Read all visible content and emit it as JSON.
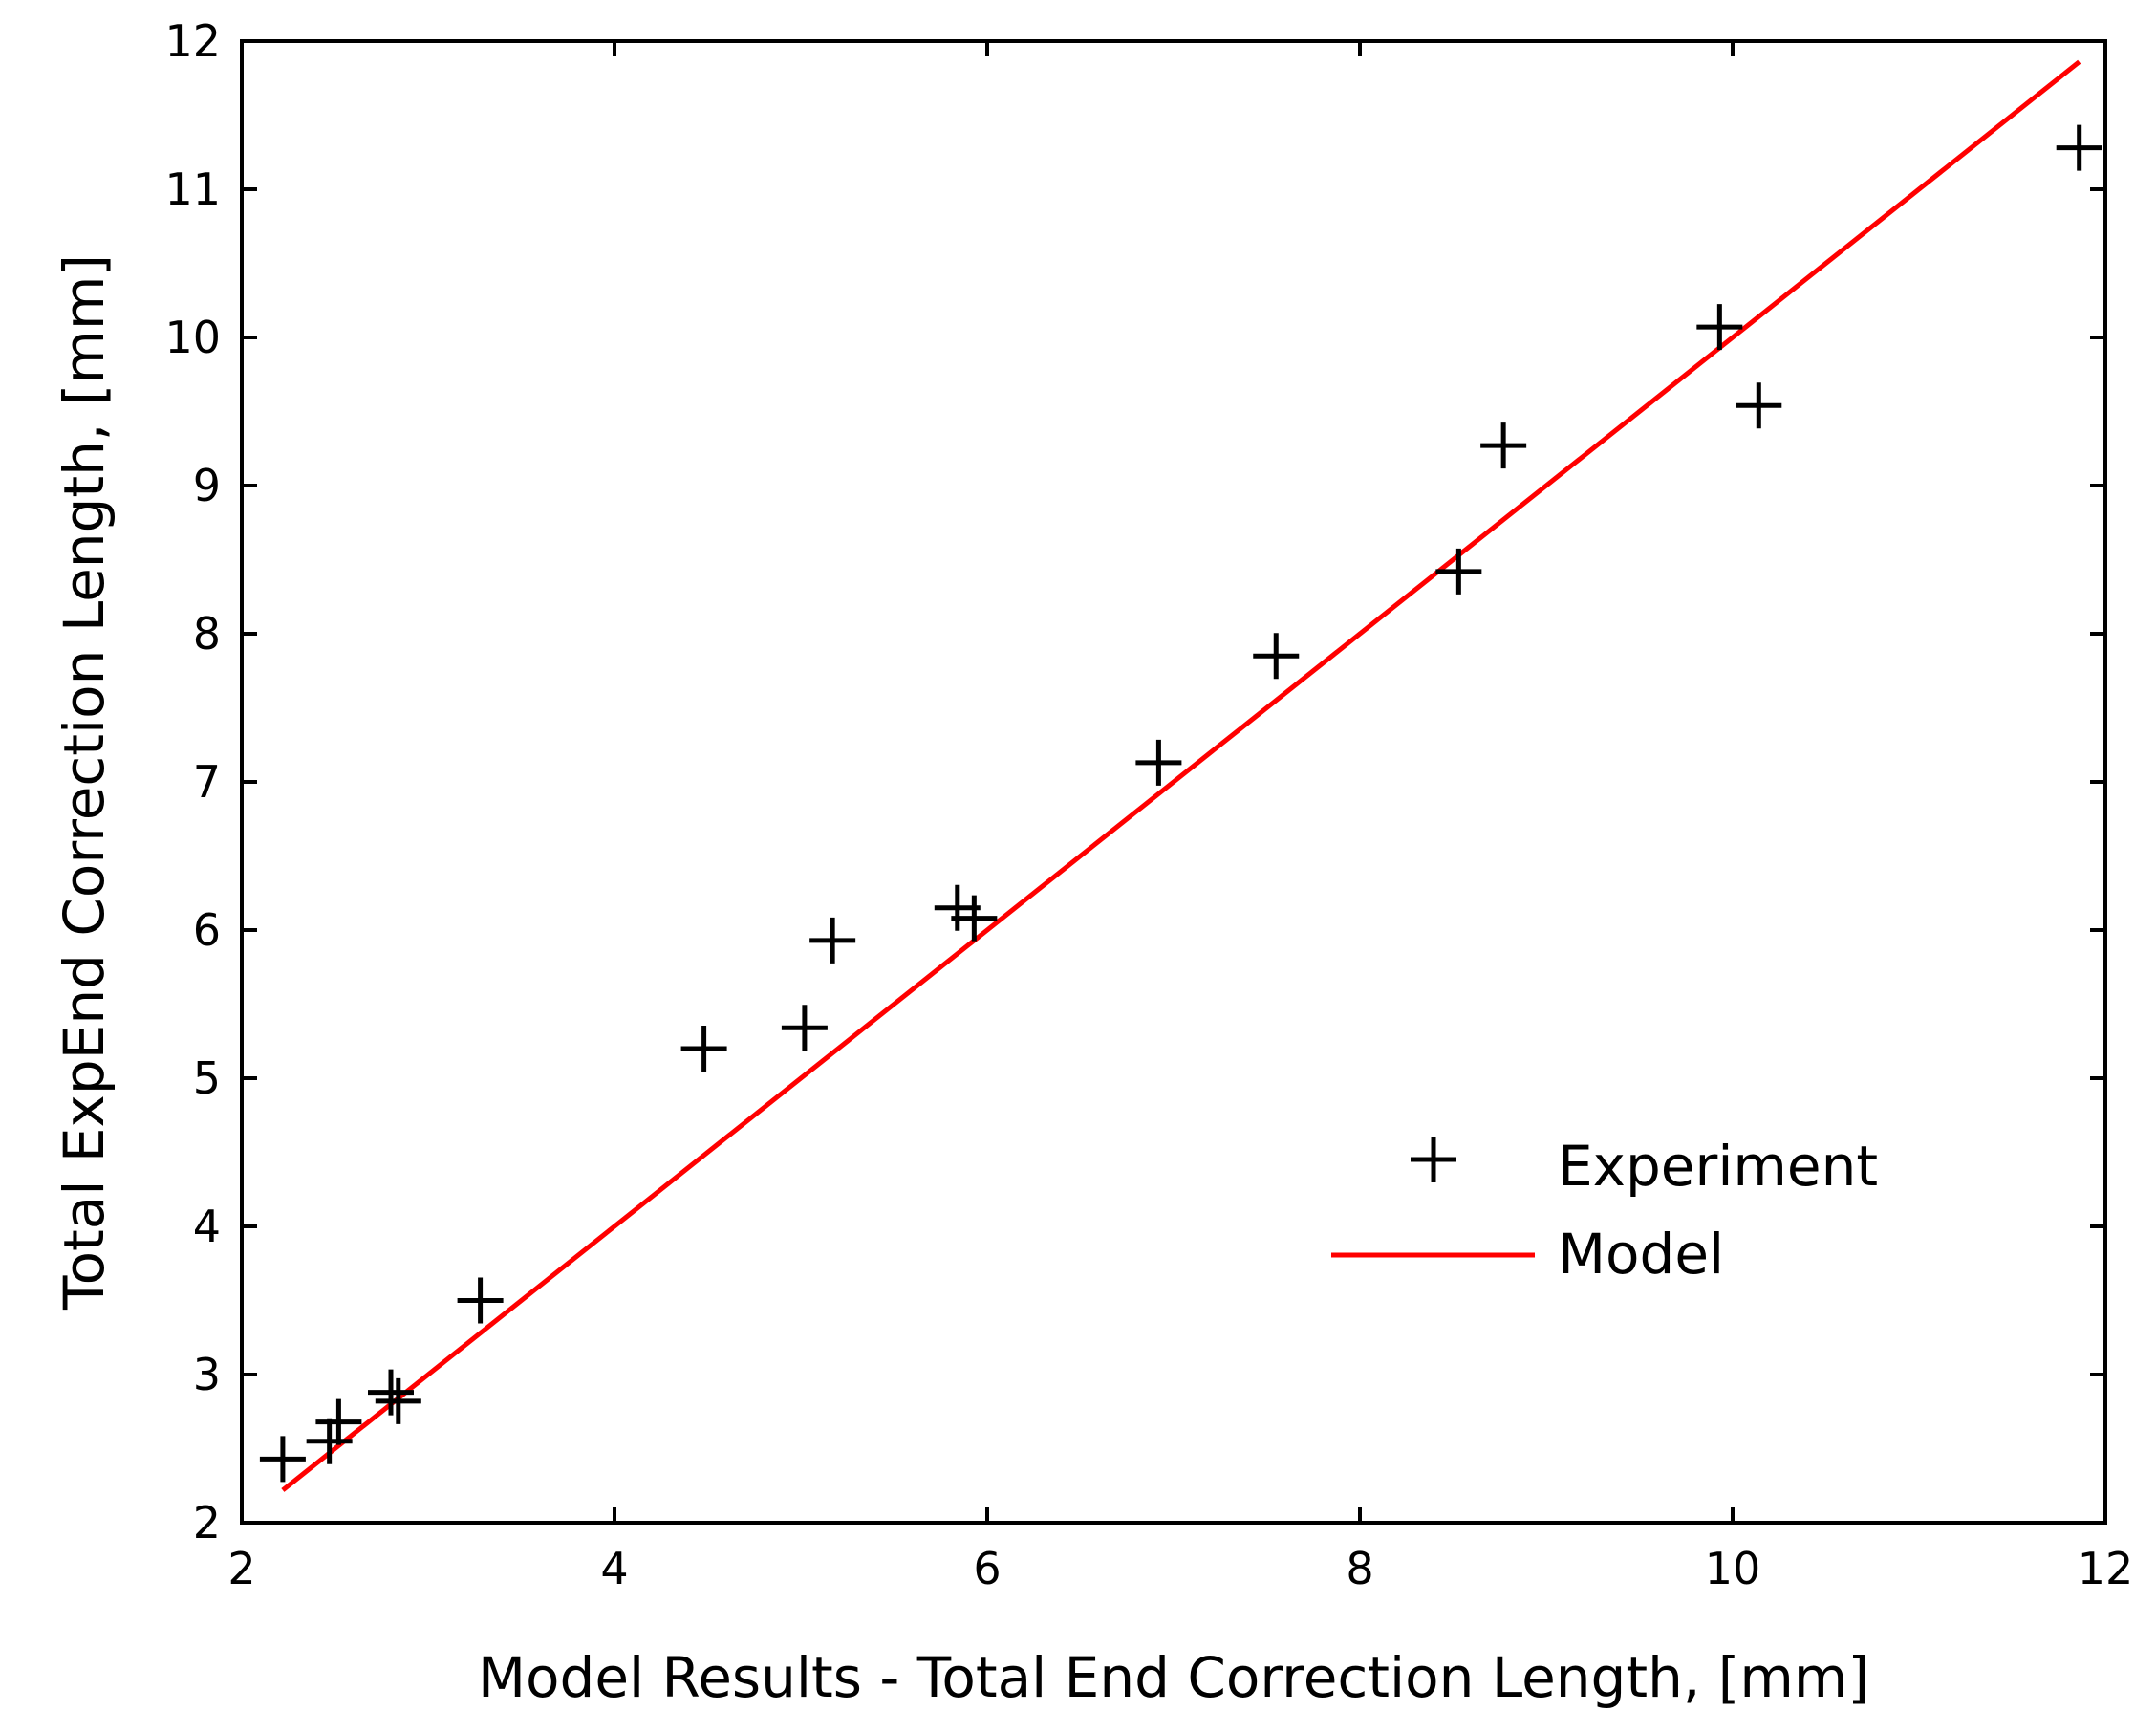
{
  "chart_data": {
    "type": "scatter",
    "xlabel": "Model Results - Total End Correction Length, [mm]",
    "ylabel": "Total ExpEnd Correction Length, [mm]",
    "xlim": [
      2,
      12
    ],
    "ylim": [
      2,
      12
    ],
    "xticks": [
      "2",
      "4",
      "6",
      "8",
      "10",
      "12"
    ],
    "yticks": [
      "2",
      "3",
      "4",
      "5",
      "6",
      "7",
      "8",
      "9",
      "10",
      "11",
      "12"
    ],
    "legend_position": "bottom-right",
    "series": [
      {
        "name": "Experiment",
        "marker": "plus",
        "color": "#000000",
        "points": [
          [
            2.22,
            2.43
          ],
          [
            2.47,
            2.55
          ],
          [
            2.52,
            2.68
          ],
          [
            2.8,
            2.88
          ],
          [
            2.84,
            2.82
          ],
          [
            3.28,
            3.5
          ],
          [
            4.48,
            5.2
          ],
          [
            5.02,
            5.34
          ],
          [
            5.17,
            5.93
          ],
          [
            5.84,
            6.15
          ],
          [
            5.93,
            6.08
          ],
          [
            6.92,
            7.13
          ],
          [
            7.55,
            7.85
          ],
          [
            8.53,
            8.42
          ],
          [
            8.77,
            9.27
          ],
          [
            9.93,
            10.07
          ],
          [
            10.14,
            9.54
          ],
          [
            11.86,
            11.28
          ]
        ]
      },
      {
        "name": "Model",
        "marker": "line",
        "color": "#ff0000",
        "points": [
          [
            2.22,
            2.22
          ],
          [
            11.86,
            11.86
          ]
        ]
      }
    ]
  }
}
